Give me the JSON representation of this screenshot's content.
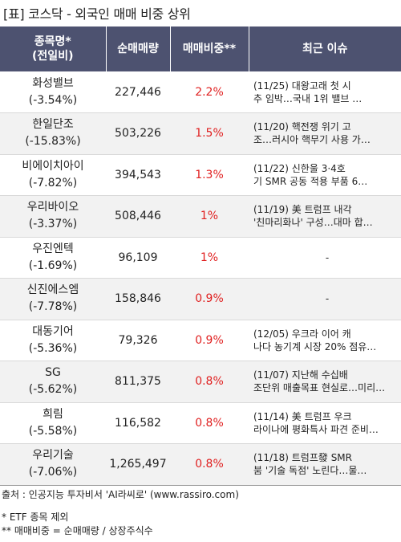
{
  "title": "[표] 코스닥 - 외국인 매매 비중 상위",
  "headers": {
    "name": "종목명*\n(전일비)",
    "volume": "순매매량",
    "ratio": "매매비중**",
    "issue": "최근 이슈"
  },
  "rows": [
    {
      "name": "화성밸브",
      "change": "(-3.54%)",
      "volume": "227,446",
      "ratio": "2.2%",
      "issue": "(11/25) 대왕고래 첫 시\n추 임박…국내 1위 밸브 …"
    },
    {
      "name": "한일단조",
      "change": "(-15.83%)",
      "volume": "503,226",
      "ratio": "1.5%",
      "issue": "(11/20) 핵전쟁 위기 고\n조…러시아 핵무기 사용 가…"
    },
    {
      "name": "비에이치아이",
      "change": "(-7.82%)",
      "volume": "394,543",
      "ratio": "1.3%",
      "issue": "(11/22) 신한울 3·4호\n기 SMR 공동 적용 부품 6…"
    },
    {
      "name": "우리바이오",
      "change": "(-3.37%)",
      "volume": "508,446",
      "ratio": "1%",
      "issue": "(11/19) 美 트럼프 내각\n'친마리화나' 구성…대마 합…"
    },
    {
      "name": "우진엔텍",
      "change": "(-1.69%)",
      "volume": "96,109",
      "ratio": "1%",
      "issue": "-"
    },
    {
      "name": "신진에스엠",
      "change": "(-7.78%)",
      "volume": "158,846",
      "ratio": "0.9%",
      "issue": "-"
    },
    {
      "name": "대동기어",
      "change": "(-5.36%)",
      "volume": "79,326",
      "ratio": "0.9%",
      "issue": "(12/05) 우크라 이어 캐\n나다 농기계 시장 20% 점유…"
    },
    {
      "name": "SG",
      "change": "(-5.62%)",
      "volume": "811,375",
      "ratio": "0.8%",
      "issue": "(11/07) 지난해 수십배\n조단위 매출목표 현실로…미리…"
    },
    {
      "name": "희림",
      "change": "(-5.58%)",
      "volume": "116,582",
      "ratio": "0.8%",
      "issue": "(11/14) 美 트럼프 우크\n라이나에 평화특사 파견 준비…"
    },
    {
      "name": "우리기술",
      "change": "(-7.06%)",
      "volume": "1,265,497",
      "ratio": "0.8%",
      "issue": "(11/18) 트럼프發 SMR\n붐 '기술 독점' 노린다…물…"
    }
  ],
  "footer": {
    "source": "출처 : 인공지능 투자비서 'AI라씨로' (www.rassiro.com)",
    "note1": "* ETF 종목 제외",
    "note2": "** 매매비중 = 순매매량 / 상장주식수"
  },
  "colors": {
    "header_bg": "#4d5270",
    "ratio_text": "#e02020",
    "stripe": "#f2f2f2"
  }
}
